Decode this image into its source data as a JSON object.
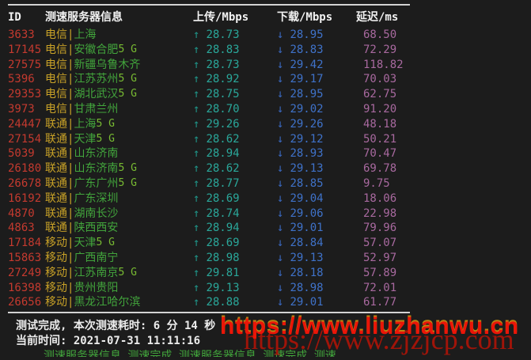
{
  "table": {
    "headers": {
      "id": "ID",
      "server": "测速服务器信息",
      "upload": "上传/Mbps",
      "download": "下载/Mbps",
      "latency": "延迟/ms"
    },
    "separator": "|",
    "upload_arrow": "↑",
    "download_arrow": "↓",
    "rows": [
      {
        "id": "3633",
        "carrier": "电信",
        "city": "上海",
        "suffix": "",
        "upload": "28.73",
        "download": "28.95",
        "latency": "68.50"
      },
      {
        "id": "17145",
        "carrier": "电信",
        "city": "安徽合肥",
        "suffix": "5 G",
        "upload": "28.83",
        "download": "28.83",
        "latency": "72.29"
      },
      {
        "id": "27575",
        "carrier": "电信",
        "city": "新疆乌鲁木齐",
        "suffix": "",
        "upload": "28.73",
        "download": "29.42",
        "latency": "118.82"
      },
      {
        "id": "5396",
        "carrier": "电信",
        "city": "江苏苏州",
        "suffix": "5 G",
        "upload": "28.92",
        "download": "29.17",
        "latency": "70.03"
      },
      {
        "id": "29353",
        "carrier": "电信",
        "city": "湖北武汉",
        "suffix": "5 G",
        "upload": "28.75",
        "download": "28.95",
        "latency": "62.75"
      },
      {
        "id": "3973",
        "carrier": "电信",
        "city": "甘肃兰州",
        "suffix": "",
        "upload": "28.70",
        "download": "29.02",
        "latency": "91.20"
      },
      {
        "id": "24447",
        "carrier": "联通",
        "city": "上海",
        "suffix": "5 G",
        "upload": "29.26",
        "download": "29.26",
        "latency": "48.18"
      },
      {
        "id": "27154",
        "carrier": "联通",
        "city": "天津",
        "suffix": "5 G",
        "upload": "28.62",
        "download": "29.12",
        "latency": "50.21"
      },
      {
        "id": "5039",
        "carrier": "联通",
        "city": "山东济南",
        "suffix": "",
        "upload": "28.94",
        "download": "28.93",
        "latency": "70.47"
      },
      {
        "id": "26180",
        "carrier": "联通",
        "city": "山东济南",
        "suffix": "5 G",
        "upload": "28.62",
        "download": "29.13",
        "latency": "69.78"
      },
      {
        "id": "26678",
        "carrier": "联通",
        "city": "广东广州",
        "suffix": "5 G",
        "upload": "28.77",
        "download": "28.85",
        "latency": "9.75"
      },
      {
        "id": "16192",
        "carrier": "联通",
        "city": "广东深圳",
        "suffix": "",
        "upload": "28.69",
        "download": "29.04",
        "latency": "18.06"
      },
      {
        "id": "4870",
        "carrier": "联通",
        "city": "湖南长沙",
        "suffix": "",
        "upload": "28.74",
        "download": "29.06",
        "latency": "22.98"
      },
      {
        "id": "4863",
        "carrier": "联通",
        "city": "陕西西安",
        "suffix": "",
        "upload": "28.94",
        "download": "29.01",
        "latency": "79.96"
      },
      {
        "id": "17184",
        "carrier": "移动",
        "city": "天津",
        "suffix": "5 G",
        "upload": "28.69",
        "download": "28.84",
        "latency": "57.07"
      },
      {
        "id": "15863",
        "carrier": "移动",
        "city": "广西南宁",
        "suffix": "",
        "upload": "28.98",
        "download": "29.13",
        "latency": "52.97"
      },
      {
        "id": "27249",
        "carrier": "移动",
        "city": "江苏南京",
        "suffix": "5 G",
        "upload": "29.81",
        "download": "28.18",
        "latency": "57.89"
      },
      {
        "id": "16398",
        "carrier": "移动",
        "city": "贵州贵阳",
        "suffix": "",
        "upload": "29.13",
        "download": "28.98",
        "latency": "72.01"
      },
      {
        "id": "26656",
        "carrier": "移动",
        "city": "黑龙江哈尔滨",
        "suffix": "",
        "upload": "28.88",
        "download": "29.01",
        "latency": "61.77"
      }
    ]
  },
  "footer": {
    "line1": "测试完成, 本次测速耗时: 6 分 14 秒",
    "line2": "当前时间: 2021-07-31 11:11:16",
    "clipped_text": "测速服务器信息 测速完成 测速服务器信息 测速完成 测速"
  },
  "watermarks": {
    "primary": "https://www.liuzhanwu.cn",
    "secondary": "https://www.zjzjcp.com"
  },
  "colors": {
    "background": "#1c1c1c",
    "id_red": "#c43a2f",
    "carrier_yellow": "#c9a227",
    "city_green": "#42a53c",
    "fiveg_lime": "#78bb32",
    "upload_teal": "#2aa79a",
    "download_blue": "#3f72c9",
    "latency_purple": "#a8699f",
    "rule_gray": "#d2d2d2",
    "watermark_primary_red": "#ea1508",
    "watermark_secondary_red": "#a81408"
  }
}
